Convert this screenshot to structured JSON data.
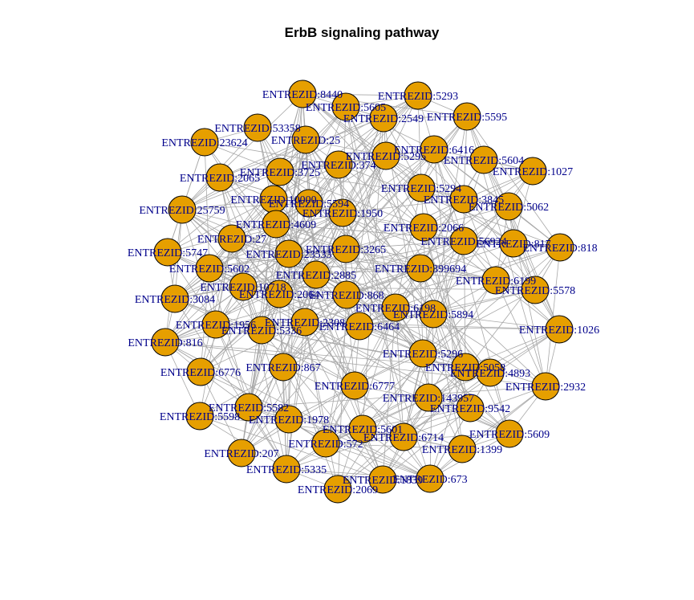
{
  "title": "ErbB signaling pathway",
  "colors": {
    "node_fill": "#e69f00",
    "node_stroke": "#000000",
    "edge": "#a8a8a8",
    "label": "#00008b"
  },
  "nodes": [
    "ENTREZID:8440",
    "ENTREZID:5293",
    "ENTREZID:5605",
    "ENTREZID:2549",
    "ENTREZID:5595",
    "ENTREZID:53358",
    "ENTREZID:25",
    "ENTREZID:23624",
    "ENTREZID:6416",
    "ENTREZID:5604",
    "ENTREZID:5295",
    "ENTREZID:374",
    "ENTREZID:1027",
    "ENTREZID:3725",
    "ENTREZID:2065",
    "ENTREZID:5294",
    "ENTREZID:3845",
    "ENTREZID:10000",
    "ENTREZID:5594",
    "ENTREZID:1950",
    "ENTREZID:5062",
    "ENTREZID:25759",
    "ENTREZID:4609",
    "ENTREZID:2066",
    "ENTREZID:27",
    "ENTREZID:5747",
    "ENTREZID:56924",
    "ENTREZID:817",
    "ENTREZID:818",
    "ENTREZID:23533",
    "ENTREZID:3265",
    "ENTREZID:5602",
    "ENTREZID:399694",
    "ENTREZID:2885",
    "ENTREZID:6199",
    "ENTREZID:10718",
    "ENTREZID:2064",
    "ENTREZID:868",
    "ENTREZID:5578",
    "ENTREZID:3084",
    "ENTREZID:6198",
    "ENTREZID:5894",
    "ENTREZID:2308",
    "ENTREZID:6464",
    "ENTREZID:1956",
    "ENTREZID:5336",
    "ENTREZID:5058",
    "ENTREZID:1026",
    "ENTREZID:816",
    "ENTREZID:867",
    "ENTREZID:5296",
    "ENTREZID:6776",
    "ENTREZID:4893",
    "ENTREZID:2932",
    "ENTREZID:6777",
    "ENTREZID:5598",
    "ENTREZID:5582",
    "ENTREZID:1978",
    "ENTREZID:143957",
    "ENTREZID:9542",
    "ENTREZID:5601",
    "ENTREZID:5609",
    "ENTREZID:207",
    "ENTREZID:572",
    "ENTREZID:6714",
    "ENTREZID:1399",
    "ENTREZID:5335",
    "ENTREZID:2069",
    "ENTREZID:1839",
    "ENTREZID:673"
  ]
}
